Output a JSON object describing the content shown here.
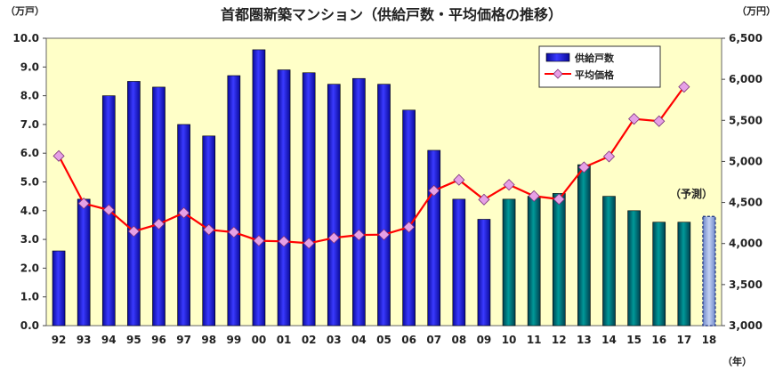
{
  "chart_data": {
    "type": "bar",
    "title": "首都圏新築マンション（供給戸数・平均価格の推移）",
    "left_axis_unit": "（万戸）",
    "right_axis_unit": "（万円）",
    "x_axis_unit": "（年）",
    "annotation": "（予測）",
    "categories": [
      "92",
      "93",
      "94",
      "95",
      "96",
      "97",
      "98",
      "99",
      "00",
      "01",
      "02",
      "03",
      "04",
      "05",
      "06",
      "07",
      "08",
      "09",
      "10",
      "11",
      "12",
      "13",
      "14",
      "15",
      "16",
      "17",
      "18"
    ],
    "ylim_left": [
      0,
      10
    ],
    "yticks_left": [
      "0.0",
      "1.0",
      "2.0",
      "3.0",
      "4.0",
      "5.0",
      "6.0",
      "7.0",
      "8.0",
      "9.0",
      "10.0"
    ],
    "ylim_right": [
      3000,
      6500
    ],
    "yticks_right": [
      "3,000",
      "3,500",
      "4,000",
      "4,500",
      "5,000",
      "5,500",
      "6,000",
      "6,500"
    ],
    "grid": false,
    "legend_position": "top-right",
    "series": [
      {
        "name": "供給戸数",
        "type": "bar",
        "axis": "left",
        "values": [
          2.6,
          4.4,
          8.0,
          8.5,
          8.3,
          7.0,
          6.6,
          8.7,
          9.6,
          8.9,
          8.8,
          8.4,
          8.6,
          8.4,
          7.5,
          6.1,
          4.4,
          3.7,
          4.4,
          4.5,
          4.6,
          5.6,
          4.5,
          4.0,
          3.6,
          3.6,
          3.8
        ]
      },
      {
        "name": "平均価格",
        "type": "line",
        "axis": "right",
        "values": [
          5066,
          4488,
          4409,
          4148,
          4238,
          4374,
          4168,
          4138,
          4034,
          4026,
          4003,
          4069,
          4104,
          4108,
          4200,
          4644,
          4775,
          4535,
          4716,
          4578,
          4540,
          4929,
          5060,
          5518,
          5490,
          5908,
          null
        ]
      }
    ],
    "colors": {
      "bar_blue_top": "#3333ff",
      "bar_blue_bottom": "#00008b",
      "bar_teal_top": "#008b8b",
      "bar_teal_bottom": "#003a4a",
      "line": "#ff0000",
      "marker_fill": "#e6a0e6",
      "plot_bg": "#ffffc8"
    }
  }
}
